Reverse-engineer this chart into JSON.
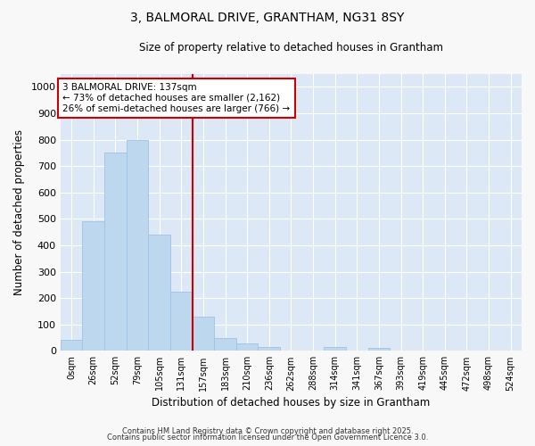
{
  "title1": "3, BALMORAL DRIVE, GRANTHAM, NG31 8SY",
  "title2": "Size of property relative to detached houses in Grantham",
  "xlabel": "Distribution of detached houses by size in Grantham",
  "ylabel": "Number of detached properties",
  "bar_labels": [
    "0sqm",
    "26sqm",
    "52sqm",
    "79sqm",
    "105sqm",
    "131sqm",
    "157sqm",
    "183sqm",
    "210sqm",
    "236sqm",
    "262sqm",
    "288sqm",
    "314sqm",
    "341sqm",
    "367sqm",
    "393sqm",
    "419sqm",
    "445sqm",
    "472sqm",
    "498sqm",
    "524sqm"
  ],
  "bar_values": [
    40,
    490,
    750,
    800,
    440,
    225,
    130,
    50,
    28,
    15,
    0,
    0,
    15,
    0,
    10,
    0,
    0,
    0,
    0,
    0,
    0
  ],
  "bar_color": "#BDD7EE",
  "bar_edge_color": "#9DC3E6",
  "vline_x": 5.5,
  "annotation_text": "3 BALMORAL DRIVE: 137sqm\n← 73% of detached houses are smaller (2,162)\n26% of semi-detached houses are larger (766) →",
  "annotation_box_color": "#ffffff",
  "annotation_border_color": "#cc0000",
  "vline_color": "#cc0000",
  "ylim": [
    0,
    1050
  ],
  "yticks": [
    0,
    100,
    200,
    300,
    400,
    500,
    600,
    700,
    800,
    900,
    1000
  ],
  "bg_color": "#dce8f5",
  "grid_color": "#ffffff",
  "fig_color": "#f8f8f8",
  "footer1": "Contains HM Land Registry data © Crown copyright and database right 2025.",
  "footer2": "Contains public sector information licensed under the Open Government Licence 3.0."
}
